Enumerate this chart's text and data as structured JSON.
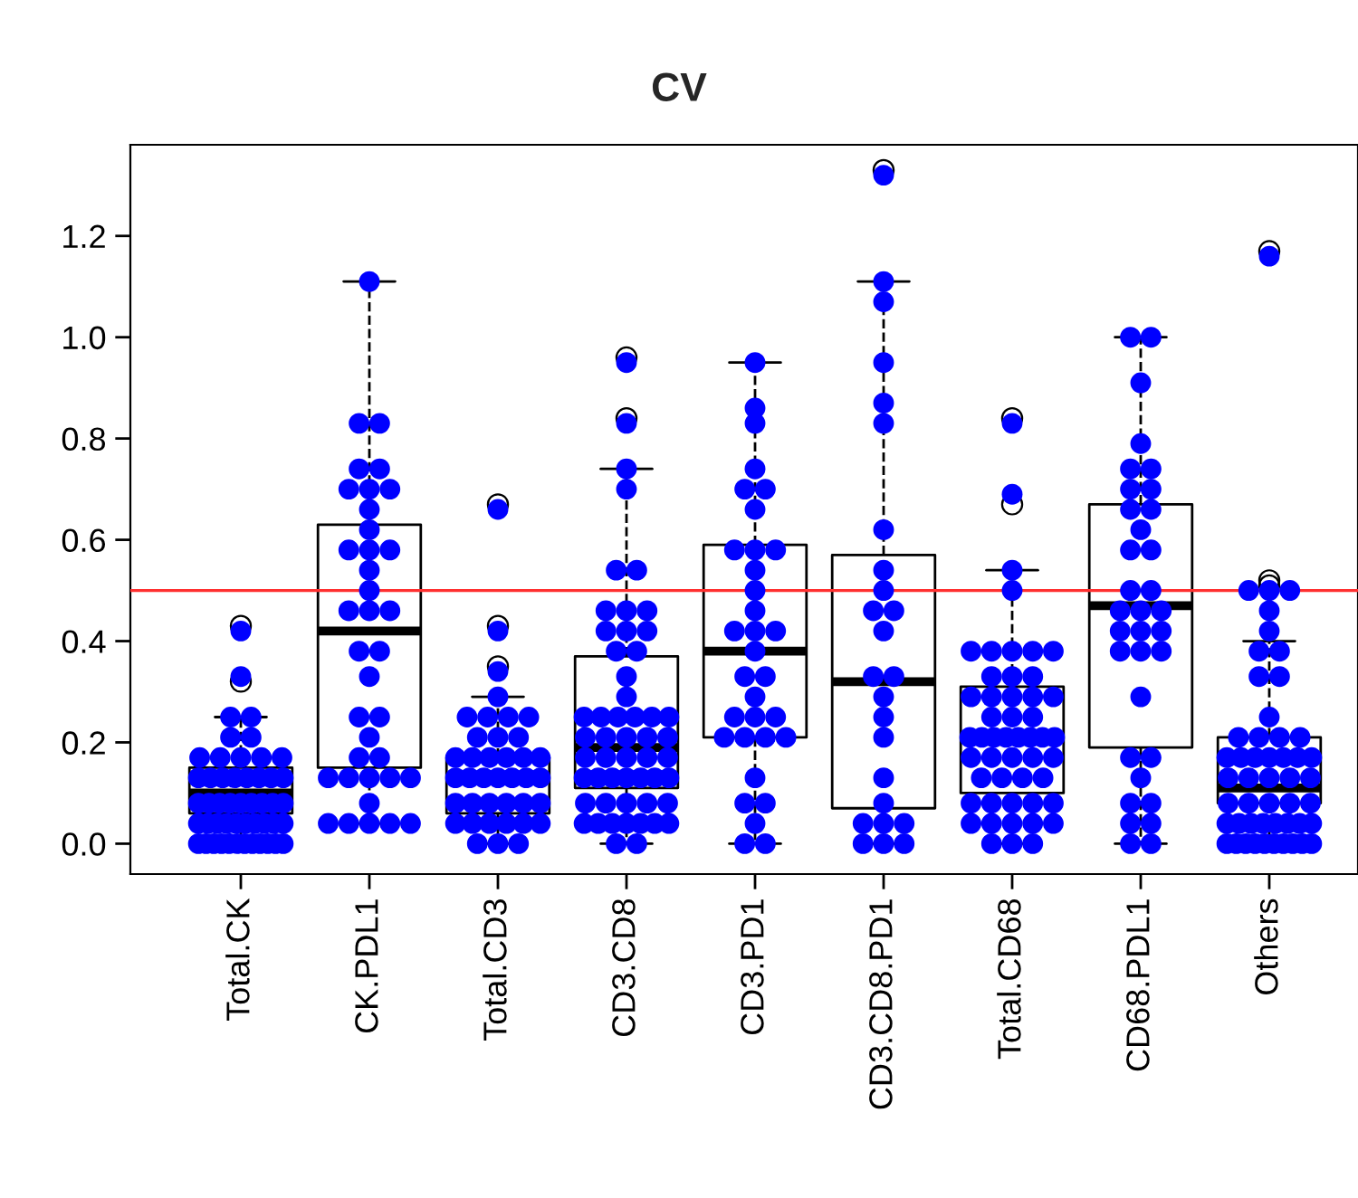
{
  "chart_data": {
    "type": "box",
    "title": "CV",
    "categories": [
      "Total.CK",
      "CK.PDL1",
      "Total.CD3",
      "CD3.CD8",
      "CD3.PD1",
      "CD3.CD8.PD1",
      "Total.CD68",
      "CD68.PDL1",
      "Others"
    ],
    "ylim": [
      -0.06,
      1.38
    ],
    "yticks": [
      {
        "value": 0,
        "label": "0.0"
      },
      0.2,
      0.4,
      0.6,
      0.8,
      {
        "value": 1,
        "label": "1.0"
      },
      1.2
    ],
    "grid": false,
    "legend": false,
    "boxes": [
      {
        "low": 0,
        "q1": 0.06,
        "median": 0.1,
        "q3": 0.15,
        "high": 0.25,
        "outliers": [
          0.32,
          0.43
        ]
      },
      {
        "low": 0.04,
        "q1": 0.15,
        "median": 0.42,
        "q3": 0.63,
        "high": 1.11
      },
      {
        "low": 0,
        "q1": 0.06,
        "median": 0.13,
        "q3": 0.17,
        "high": 0.29,
        "outliers": [
          0.35,
          0.43,
          0.67
        ]
      },
      {
        "low": 0,
        "q1": 0.11,
        "median": 0.19,
        "q3": 0.37,
        "high": 0.74,
        "outliers": [
          0.84,
          0.96
        ]
      },
      {
        "low": 0,
        "q1": 0.21,
        "median": 0.38,
        "q3": 0.59,
        "high": 0.95
      },
      {
        "low": 0,
        "q1": 0.07,
        "median": 0.32,
        "q3": 0.57,
        "high": 1.11,
        "outliers": [
          1.33
        ]
      },
      {
        "low": 0,
        "q1": 0.1,
        "median": 0.21,
        "q3": 0.31,
        "high": 0.54,
        "outliers": [
          0.67,
          0.84
        ]
      },
      {
        "low": 0,
        "q1": 0.19,
        "median": 0.47,
        "q3": 0.67,
        "high": 1.0
      },
      {
        "low": 0,
        "q1": 0.08,
        "median": 0.11,
        "q3": 0.21,
        "high": 0.4,
        "outliers": [
          0.51,
          0.52,
          1.17
        ]
      }
    ],
    "series": [
      {
        "type": "scatter",
        "color": "#0000ff",
        "marker": "circle",
        "x": [
          "Total.CK",
          "Total.CK",
          "Total.CK",
          "Total.CK",
          "Total.CK",
          "Total.CK",
          "Total.CK",
          "Total.CK",
          "Total.CK",
          "Total.CK",
          "Total.CK",
          "Total.CK",
          "Total.CK",
          "Total.CK",
          "Total.CK",
          "Total.CK",
          "Total.CK",
          "Total.CK",
          "Total.CK",
          "Total.CK",
          "Total.CK",
          "Total.CK",
          "Total.CK",
          "Total.CK",
          "Total.CK",
          "Total.CK",
          "Total.CK",
          "Total.CK",
          "Total.CK",
          "Total.CK",
          "Total.CK",
          "Total.CK",
          "Total.CK",
          "Total.CK",
          "Total.CK",
          "Total.CK",
          "Total.CK",
          "Total.CK",
          "Total.CK",
          "Total.CK",
          "Total.CK",
          "Total.CK",
          "Total.CK",
          "Total.CK",
          "Total.CK",
          "Total.CK",
          "Total.CK",
          "Total.CK",
          "Total.CK",
          "Total.CK",
          "CK.PDL1",
          "CK.PDL1",
          "CK.PDL1",
          "CK.PDL1",
          "CK.PDL1",
          "CK.PDL1",
          "CK.PDL1",
          "CK.PDL1",
          "CK.PDL1",
          "CK.PDL1",
          "CK.PDL1",
          "CK.PDL1",
          "CK.PDL1",
          "CK.PDL1",
          "CK.PDL1",
          "CK.PDL1",
          "CK.PDL1",
          "CK.PDL1",
          "CK.PDL1",
          "CK.PDL1",
          "CK.PDL1",
          "CK.PDL1",
          "CK.PDL1",
          "CK.PDL1",
          "CK.PDL1",
          "CK.PDL1",
          "CK.PDL1",
          "CK.PDL1",
          "CK.PDL1",
          "CK.PDL1",
          "CK.PDL1",
          "CK.PDL1",
          "CK.PDL1",
          "CK.PDL1",
          "CK.PDL1",
          "CK.PDL1",
          "CK.PDL1",
          "Total.CD3",
          "Total.CD3",
          "Total.CD3",
          "Total.CD3",
          "Total.CD3",
          "Total.CD3",
          "Total.CD3",
          "Total.CD3",
          "Total.CD3",
          "Total.CD3",
          "Total.CD3",
          "Total.CD3",
          "Total.CD3",
          "Total.CD3",
          "Total.CD3",
          "Total.CD3",
          "Total.CD3",
          "Total.CD3",
          "Total.CD3",
          "Total.CD3",
          "Total.CD3",
          "Total.CD3",
          "Total.CD3",
          "Total.CD3",
          "Total.CD3",
          "Total.CD3",
          "Total.CD3",
          "Total.CD3",
          "Total.CD3",
          "Total.CD3",
          "Total.CD3",
          "Total.CD3",
          "Total.CD3",
          "Total.CD3",
          "Total.CD3",
          "Total.CD3",
          "Total.CD3",
          "Total.CD3",
          "Total.CD3",
          "CD3.CD8",
          "CD3.CD8",
          "CD3.CD8",
          "CD3.CD8",
          "CD3.CD8",
          "CD3.CD8",
          "CD3.CD8",
          "CD3.CD8",
          "CD3.CD8",
          "CD3.CD8",
          "CD3.CD8",
          "CD3.CD8",
          "CD3.CD8",
          "CD3.CD8",
          "CD3.CD8",
          "CD3.CD8",
          "CD3.CD8",
          "CD3.CD8",
          "CD3.CD8",
          "CD3.CD8",
          "CD3.CD8",
          "CD3.CD8",
          "CD3.CD8",
          "CD3.CD8",
          "CD3.CD8",
          "CD3.CD8",
          "CD3.CD8",
          "CD3.CD8",
          "CD3.CD8",
          "CD3.CD8",
          "CD3.CD8",
          "CD3.CD8",
          "CD3.CD8",
          "CD3.CD8",
          "CD3.CD8",
          "CD3.CD8",
          "CD3.CD8",
          "CD3.CD8",
          "CD3.CD8",
          "CD3.CD8",
          "CD3.CD8",
          "CD3.CD8",
          "CD3.CD8",
          "CD3.CD8",
          "CD3.CD8",
          "CD3.CD8",
          "CD3.CD8",
          "CD3.CD8",
          "CD3.CD8",
          "CD3.CD8",
          "CD3.CD8",
          "CD3.CD8",
          "CD3.CD8",
          "CD3.PD1",
          "CD3.PD1",
          "CD3.PD1",
          "CD3.PD1",
          "CD3.PD1",
          "CD3.PD1",
          "CD3.PD1",
          "CD3.PD1",
          "CD3.PD1",
          "CD3.PD1",
          "CD3.PD1",
          "CD3.PD1",
          "CD3.PD1",
          "CD3.PD1",
          "CD3.PD1",
          "CD3.PD1",
          "CD3.PD1",
          "CD3.PD1",
          "CD3.PD1",
          "CD3.PD1",
          "CD3.PD1",
          "CD3.PD1",
          "CD3.PD1",
          "CD3.PD1",
          "CD3.PD1",
          "CD3.PD1",
          "CD3.PD1",
          "CD3.PD1",
          "CD3.PD1",
          "CD3.PD1",
          "CD3.PD1",
          "CD3.PD1",
          "CD3.PD1",
          "CD3.CD8.PD1",
          "CD3.CD8.PD1",
          "CD3.CD8.PD1",
          "CD3.CD8.PD1",
          "CD3.CD8.PD1",
          "CD3.CD8.PD1",
          "CD3.CD8.PD1",
          "CD3.CD8.PD1",
          "CD3.CD8.PD1",
          "CD3.CD8.PD1",
          "CD3.CD8.PD1",
          "CD3.CD8.PD1",
          "CD3.CD8.PD1",
          "CD3.CD8.PD1",
          "CD3.CD8.PD1",
          "CD3.CD8.PD1",
          "CD3.CD8.PD1",
          "CD3.CD8.PD1",
          "CD3.CD8.PD1",
          "CD3.CD8.PD1",
          "CD3.CD8.PD1",
          "CD3.CD8.PD1",
          "CD3.CD8.PD1",
          "CD3.CD8.PD1",
          "CD3.CD8.PD1",
          "Total.CD68",
          "Total.CD68",
          "Total.CD68",
          "Total.CD68",
          "Total.CD68",
          "Total.CD68",
          "Total.CD68",
          "Total.CD68",
          "Total.CD68",
          "Total.CD68",
          "Total.CD68",
          "Total.CD68",
          "Total.CD68",
          "Total.CD68",
          "Total.CD68",
          "Total.CD68",
          "Total.CD68",
          "Total.CD68",
          "Total.CD68",
          "Total.CD68",
          "Total.CD68",
          "Total.CD68",
          "Total.CD68",
          "Total.CD68",
          "Total.CD68",
          "Total.CD68",
          "Total.CD68",
          "Total.CD68",
          "Total.CD68",
          "Total.CD68",
          "Total.CD68",
          "Total.CD68",
          "Total.CD68",
          "Total.CD68",
          "Total.CD68",
          "Total.CD68",
          "Total.CD68",
          "Total.CD68",
          "Total.CD68",
          "Total.CD68",
          "Total.CD68",
          "Total.CD68",
          "Total.CD68",
          "Total.CD68",
          "Total.CD68",
          "Total.CD68",
          "Total.CD68",
          "Total.CD68",
          "Total.CD68",
          "Total.CD68",
          "CD68.PDL1",
          "CD68.PDL1",
          "CD68.PDL1",
          "CD68.PDL1",
          "CD68.PDL1",
          "CD68.PDL1",
          "CD68.PDL1",
          "CD68.PDL1",
          "CD68.PDL1",
          "CD68.PDL1",
          "CD68.PDL1",
          "CD68.PDL1",
          "CD68.PDL1",
          "CD68.PDL1",
          "CD68.PDL1",
          "CD68.PDL1",
          "CD68.PDL1",
          "CD68.PDL1",
          "CD68.PDL1",
          "CD68.PDL1",
          "CD68.PDL1",
          "CD68.PDL1",
          "CD68.PDL1",
          "CD68.PDL1",
          "CD68.PDL1",
          "CD68.PDL1",
          "CD68.PDL1",
          "CD68.PDL1",
          "CD68.PDL1",
          "CD68.PDL1",
          "CD68.PDL1",
          "CD68.PDL1",
          "CD68.PDL1",
          "CD68.PDL1",
          "Others",
          "Others",
          "Others",
          "Others",
          "Others",
          "Others",
          "Others",
          "Others",
          "Others",
          "Others",
          "Others",
          "Others",
          "Others",
          "Others",
          "Others",
          "Others",
          "Others",
          "Others",
          "Others",
          "Others",
          "Others",
          "Others",
          "Others",
          "Others",
          "Others",
          "Others",
          "Others",
          "Others",
          "Others",
          "Others",
          "Others",
          "Others",
          "Others",
          "Others",
          "Others",
          "Others",
          "Others",
          "Others",
          "Others",
          "Others",
          "Others",
          "Others",
          "Others",
          "Others",
          "Others",
          "Others",
          "Others",
          "Others",
          "Others",
          "Others"
        ],
        "values": [
          0,
          0,
          0,
          0,
          0,
          0,
          0,
          0,
          0,
          0,
          0,
          0,
          0.04,
          0.04,
          0.04,
          0.04,
          0.04,
          0.04,
          0.04,
          0.04,
          0.04,
          0.04,
          0.08,
          0.08,
          0.08,
          0.08,
          0.08,
          0.08,
          0.08,
          0.08,
          0.08,
          0.13,
          0.13,
          0.13,
          0.13,
          0.13,
          0.13,
          0.13,
          0.13,
          0.17,
          0.17,
          0.17,
          0.17,
          0.17,
          0.21,
          0.21,
          0.25,
          0.25,
          0.33,
          0.42,
          1.11,
          0.83,
          0.83,
          0.74,
          0.74,
          0.7,
          0.7,
          0.7,
          0.66,
          0.62,
          0.58,
          0.58,
          0.58,
          0.54,
          0.5,
          0.46,
          0.46,
          0.46,
          0.38,
          0.38,
          0.33,
          0.25,
          0.25,
          0.21,
          0.17,
          0.17,
          0.13,
          0.13,
          0.13,
          0.13,
          0.13,
          0.08,
          0.04,
          0.04,
          0.04,
          0.04,
          0.04,
          0.66,
          0.42,
          0.34,
          0.29,
          0.25,
          0.25,
          0.25,
          0.25,
          0.21,
          0.21,
          0.21,
          0.17,
          0.17,
          0.17,
          0.17,
          0.17,
          0.17,
          0.13,
          0.13,
          0.13,
          0.13,
          0.13,
          0.13,
          0.13,
          0.08,
          0.08,
          0.08,
          0.08,
          0.08,
          0.08,
          0.04,
          0.04,
          0.04,
          0.04,
          0.04,
          0.04,
          0,
          0,
          0,
          0.95,
          0.83,
          0.74,
          0.7,
          0.54,
          0.54,
          0.46,
          0.46,
          0.46,
          0.42,
          0.42,
          0.42,
          0.38,
          0.38,
          0.33,
          0.29,
          0.25,
          0.25,
          0.25,
          0.25,
          0.25,
          0.25,
          0.21,
          0.21,
          0.21,
          0.21,
          0.21,
          0.17,
          0.17,
          0.17,
          0.17,
          0.17,
          0.13,
          0.13,
          0.13,
          0.13,
          0.13,
          0.13,
          0.13,
          0.08,
          0.08,
          0.08,
          0.08,
          0.08,
          0.04,
          0.04,
          0.04,
          0.04,
          0.04,
          0.04,
          0.04,
          0,
          0,
          0.95,
          0.86,
          0.83,
          0.74,
          0.7,
          0.7,
          0.66,
          0.58,
          0.58,
          0.58,
          0.54,
          0.5,
          0.46,
          0.42,
          0.42,
          0.42,
          0.38,
          0.33,
          0.33,
          0.29,
          0.25,
          0.25,
          0.25,
          0.21,
          0.21,
          0.21,
          0.21,
          0.13,
          0.08,
          0.08,
          0.04,
          0,
          0,
          1.32,
          1.11,
          1.07,
          0.95,
          0.87,
          0.83,
          0.62,
          0.54,
          0.5,
          0.46,
          0.46,
          0.42,
          0.33,
          0.33,
          0.29,
          0.25,
          0.21,
          0.13,
          0.08,
          0.04,
          0.04,
          0.04,
          0,
          0,
          0,
          0.83,
          0.69,
          0.54,
          0.5,
          0.38,
          0.38,
          0.38,
          0.38,
          0.38,
          0.33,
          0.33,
          0.33,
          0.29,
          0.29,
          0.29,
          0.29,
          0.29,
          0.25,
          0.25,
          0.25,
          0.21,
          0.21,
          0.21,
          0.21,
          0.21,
          0.21,
          0.21,
          0.21,
          0.17,
          0.17,
          0.17,
          0.17,
          0.17,
          0.13,
          0.13,
          0.13,
          0.13,
          0.08,
          0.08,
          0.08,
          0.08,
          0.08,
          0.04,
          0.04,
          0.04,
          0.04,
          0.04,
          0,
          0,
          0,
          1.0,
          1.0,
          0.91,
          0.79,
          0.74,
          0.74,
          0.7,
          0.7,
          0.66,
          0.66,
          0.62,
          0.58,
          0.58,
          0.5,
          0.5,
          0.46,
          0.46,
          0.46,
          0.42,
          0.42,
          0.42,
          0.38,
          0.38,
          0.38,
          0.29,
          0.17,
          0.17,
          0.13,
          0.08,
          0.08,
          0.04,
          0.04,
          0,
          0,
          1.16,
          0.5,
          0.5,
          0.5,
          0.46,
          0.42,
          0.38,
          0.38,
          0.33,
          0.33,
          0.25,
          0.21,
          0.21,
          0.21,
          0.21,
          0.17,
          0.17,
          0.17,
          0.17,
          0.17,
          0.17,
          0.17,
          0.13,
          0.13,
          0.13,
          0.13,
          0.13,
          0.08,
          0.08,
          0.08,
          0.08,
          0.08,
          0.04,
          0.04,
          0.04,
          0.04,
          0.04,
          0.04,
          0.04,
          0.04,
          0,
          0,
          0,
          0,
          0,
          0,
          0,
          0,
          0,
          0
        ]
      }
    ],
    "ref_lines": [
      {
        "axis": "y",
        "value": 0.5,
        "color": "#ff3030"
      }
    ]
  }
}
